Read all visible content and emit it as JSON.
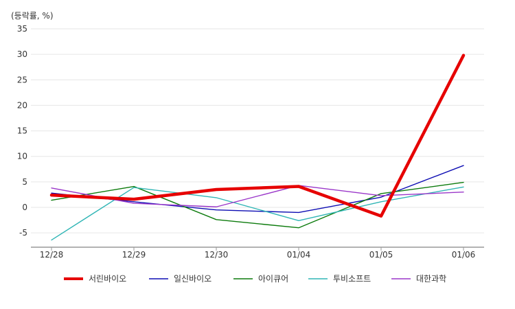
{
  "chart_data": {
    "type": "line",
    "unit_label": "(등락률, %)",
    "categories": [
      "12/28",
      "12/29",
      "12/30",
      "01/04",
      "01/05",
      "01/06"
    ],
    "ylim": [
      -7.5,
      35
    ],
    "yticks": [
      35,
      30,
      25,
      20,
      15,
      10,
      5,
      0,
      -5
    ],
    "grid": true,
    "legend_position": "bottom",
    "series": [
      {
        "name": "서린바이오",
        "color": "#e60000",
        "width": 4.5,
        "values": [
          2.4,
          1.6,
          3.5,
          4.1,
          -1.7,
          29.8
        ]
      },
      {
        "name": "일신바이오",
        "color": "#0d0db3",
        "width": 1.4,
        "values": [
          2.8,
          1.1,
          -0.5,
          -1.0,
          2.0,
          8.2
        ]
      },
      {
        "name": "아이큐어",
        "color": "#0b7a0b",
        "width": 1.4,
        "values": [
          1.4,
          4.1,
          -2.4,
          -4.0,
          2.7,
          4.9
        ]
      },
      {
        "name": "투비소프트",
        "color": "#2fb5b5",
        "width": 1.4,
        "values": [
          -6.4,
          3.9,
          1.9,
          -2.6,
          1.1,
          4.0
        ]
      },
      {
        "name": "대한과학",
        "color": "#9a36c9",
        "width": 1.4,
        "values": [
          3.8,
          0.8,
          0.1,
          4.3,
          2.3,
          3.0
        ]
      }
    ]
  }
}
